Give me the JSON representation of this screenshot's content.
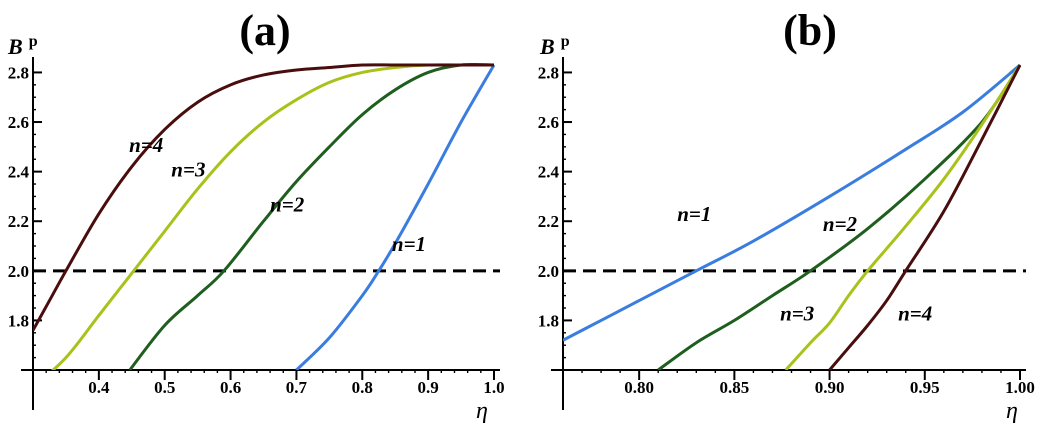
{
  "colors": {
    "n1": "#3a7de0",
    "n2": "#1e5e1e",
    "n3": "#a9c21a",
    "n4": "#4a0d0d",
    "axis": "#000000",
    "dashed": "#000000"
  },
  "chart_data": [
    {
      "type": "line",
      "panel_label": "(a)",
      "xlabel": "η",
      "ylabel_main": "B",
      "ylabel_sup": "p",
      "xlim": [
        0.3,
        1.0
      ],
      "ylim": [
        1.6,
        2.83
      ],
      "x_ticks": [
        0.4,
        0.5,
        0.6,
        0.7,
        0.8,
        0.9,
        1.0
      ],
      "x_tick_labels": [
        "0.4",
        "0.5",
        "0.6",
        "0.7",
        "0.8",
        "0.9",
        "1.0"
      ],
      "y_ticks": [
        1.8,
        2.0,
        2.2,
        2.4,
        2.6,
        2.8
      ],
      "y_tick_labels": [
        "1.8",
        "2.0",
        "2.2",
        "2.4",
        "2.6",
        "2.8"
      ],
      "reference_line": {
        "y": 2.0,
        "style": "dashed"
      },
      "series": [
        {
          "name": "n=1",
          "color_key": "n1",
          "x": [
            0.7,
            0.75,
            0.8,
            0.825,
            0.85,
            0.9,
            0.95,
            1.0
          ],
          "y": [
            1.6,
            1.73,
            1.9,
            2.0,
            2.11,
            2.35,
            2.6,
            2.83
          ]
        },
        {
          "name": "n=2",
          "color_key": "n2",
          "x": [
            0.447,
            0.5,
            0.55,
            0.59,
            0.65,
            0.7,
            0.75,
            0.8,
            0.85,
            0.9,
            0.95,
            1.0
          ],
          "y": [
            1.6,
            1.78,
            1.9,
            2.0,
            2.2,
            2.36,
            2.5,
            2.63,
            2.73,
            2.8,
            2.83,
            2.83
          ]
        },
        {
          "name": "n=3",
          "color_key": "n3",
          "x": [
            0.3,
            0.35,
            0.4,
            0.45,
            0.5,
            0.55,
            0.6,
            0.65,
            0.7,
            0.75,
            0.8,
            0.85,
            0.9,
            0.95,
            1.0
          ],
          "y": [
            1.53,
            1.65,
            1.82,
            1.99,
            2.16,
            2.33,
            2.48,
            2.6,
            2.69,
            2.76,
            2.8,
            2.82,
            2.83,
            2.83,
            2.83
          ]
        },
        {
          "name": "n=4",
          "color_key": "n4",
          "x": [
            0.3,
            0.325,
            0.35,
            0.4,
            0.45,
            0.5,
            0.55,
            0.6,
            0.65,
            0.7,
            0.75,
            0.8,
            0.85,
            0.9,
            1.0
          ],
          "y": [
            1.76,
            1.88,
            2.0,
            2.23,
            2.42,
            2.57,
            2.68,
            2.75,
            2.79,
            2.81,
            2.82,
            2.83,
            2.83,
            2.83,
            2.83
          ]
        }
      ],
      "annotations": [
        {
          "text": "n=1",
          "x": 0.845,
          "y": 2.08
        },
        {
          "text": "n=2",
          "x": 0.66,
          "y": 2.24
        },
        {
          "text": "n=3",
          "x": 0.51,
          "y": 2.38
        },
        {
          "text": "n=4",
          "x": 0.446,
          "y": 2.48
        }
      ]
    },
    {
      "type": "line",
      "panel_label": "(b)",
      "xlabel": "η",
      "ylabel_main": "B",
      "ylabel_sup": "p",
      "xlim": [
        0.76,
        1.0
      ],
      "ylim": [
        1.6,
        2.83
      ],
      "x_ticks": [
        0.8,
        0.85,
        0.9,
        0.95,
        1.0
      ],
      "x_tick_labels": [
        "0.80",
        "0.85",
        "0.90",
        "0.95",
        "1.00"
      ],
      "y_ticks": [
        1.8,
        2.0,
        2.2,
        2.4,
        2.6,
        2.8
      ],
      "y_tick_labels": [
        "1.8",
        "2.0",
        "2.2",
        "2.4",
        "2.6",
        "2.8"
      ],
      "reference_line": {
        "y": 2.0,
        "style": "dashed"
      },
      "series": [
        {
          "name": "n=1",
          "color_key": "n1",
          "x": [
            0.76,
            0.78,
            0.8,
            0.83,
            0.86,
            0.9,
            0.94,
            0.97,
            1.0
          ],
          "y": [
            1.72,
            1.8,
            1.88,
            2.0,
            2.12,
            2.3,
            2.49,
            2.64,
            2.83
          ]
        },
        {
          "name": "n=2",
          "color_key": "n2",
          "x": [
            0.81,
            0.83,
            0.85,
            0.87,
            0.89,
            0.92,
            0.95,
            0.98,
            1.0
          ],
          "y": [
            1.6,
            1.71,
            1.8,
            1.9,
            2.0,
            2.17,
            2.37,
            2.6,
            2.83
          ]
        },
        {
          "name": "n=3",
          "color_key": "n3",
          "x": [
            0.877,
            0.89,
            0.9,
            0.91,
            0.92,
            0.94,
            0.96,
            0.98,
            1.0
          ],
          "y": [
            1.6,
            1.71,
            1.79,
            1.9,
            2.0,
            2.18,
            2.37,
            2.59,
            2.83
          ]
        },
        {
          "name": "n=4",
          "color_key": "n4",
          "x": [
            0.9,
            0.91,
            0.92,
            0.93,
            0.94,
            0.96,
            0.98,
            1.0
          ],
          "y": [
            1.6,
            1.69,
            1.78,
            1.88,
            2.0,
            2.24,
            2.53,
            2.83
          ]
        }
      ],
      "annotations": [
        {
          "text": "n=1",
          "x": 0.82,
          "y": 2.2
        },
        {
          "text": "n=2",
          "x": 0.8965,
          "y": 2.16
        },
        {
          "text": "n=3",
          "x": 0.874,
          "y": 1.8
        },
        {
          "text": "n=4",
          "x": 0.936,
          "y": 1.8
        }
      ]
    }
  ]
}
